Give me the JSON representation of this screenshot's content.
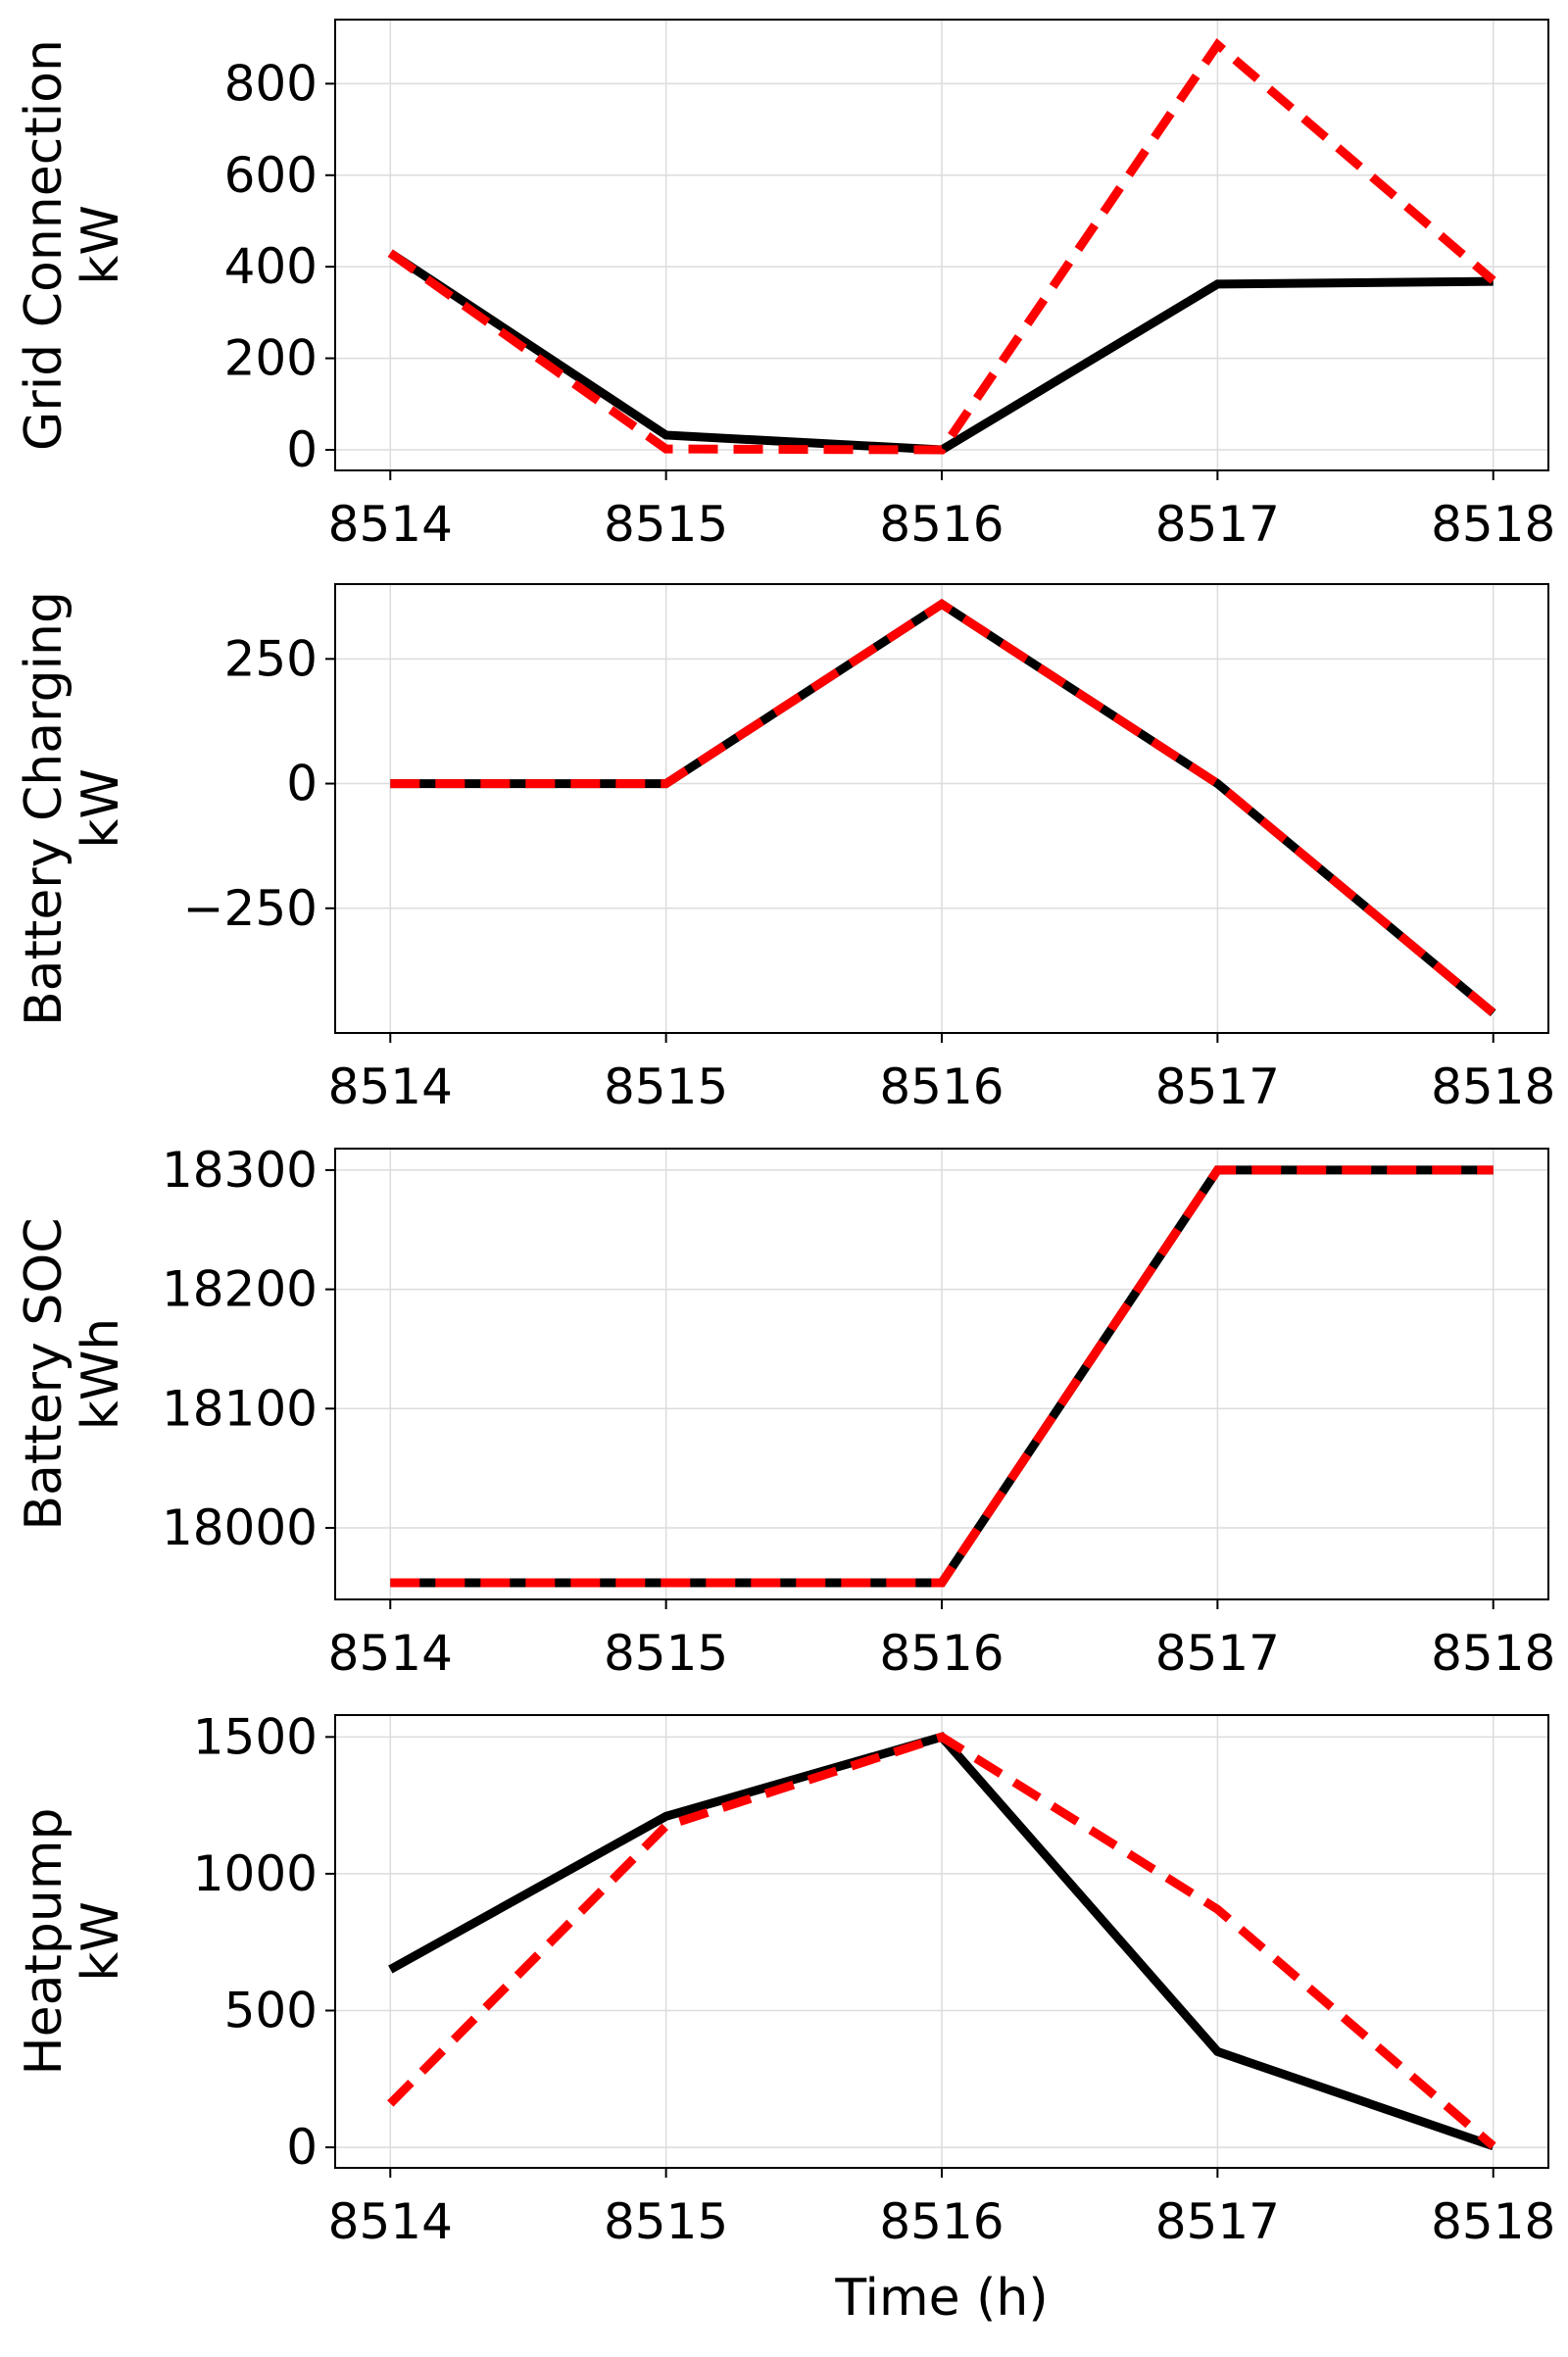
{
  "chart_data": [
    {
      "type": "line",
      "ylabel": [
        "Grid Connection",
        "kW"
      ],
      "xlabel": "",
      "x": [
        8514,
        8515,
        8516,
        8517,
        8518
      ],
      "xlim": [
        8513.8,
        8518.2
      ],
      "ylim": [
        -45,
        940
      ],
      "yticks": [
        0,
        200,
        400,
        600,
        800
      ],
      "ytick_labels": [
        "0",
        "200",
        "400",
        "600",
        "800"
      ],
      "xtick_labels": [
        "8514",
        "8515",
        "8516",
        "8517",
        "8518"
      ],
      "grid": true,
      "series": [
        {
          "style": "solid",
          "color": "#000000",
          "values": [
            430,
            32,
            0,
            362,
            368
          ]
        },
        {
          "style": "dashed",
          "color": "#ff0000",
          "values": [
            430,
            2,
            0,
            885,
            370
          ]
        }
      ]
    },
    {
      "type": "line",
      "ylabel": [
        "Battery Charging",
        "kW"
      ],
      "xlabel": "",
      "x": [
        8514,
        8515,
        8516,
        8517,
        8518
      ],
      "xlim": [
        8513.8,
        8518.2
      ],
      "ylim": [
        -500,
        400
      ],
      "yticks": [
        -250,
        0,
        250
      ],
      "ytick_labels": [
        "−250",
        "0",
        "250"
      ],
      "xtick_labels": [
        "8514",
        "8515",
        "8516",
        "8517",
        "8518"
      ],
      "grid": true,
      "series": [
        {
          "style": "solid",
          "color": "#000000",
          "values": [
            0,
            0,
            360,
            0,
            -460
          ]
        },
        {
          "style": "dashed",
          "color": "#ff0000",
          "values": [
            0,
            0,
            360,
            0,
            -460
          ]
        }
      ]
    },
    {
      "type": "line",
      "ylabel": [
        "Battery SOC",
        "kWh"
      ],
      "xlabel": "",
      "x": [
        8514,
        8515,
        8516,
        8517,
        8518
      ],
      "xlim": [
        8513.8,
        8518.2
      ],
      "ylim": [
        17940,
        18318
      ],
      "yticks": [
        18000,
        18100,
        18200,
        18300
      ],
      "ytick_labels": [
        "18000",
        "18100",
        "18200",
        "18300"
      ],
      "xtick_labels": [
        "8514",
        "8515",
        "8516",
        "8517",
        "8518"
      ],
      "grid": true,
      "series": [
        {
          "style": "solid",
          "color": "#000000",
          "values": [
            17954,
            17954,
            17954,
            18300,
            18300
          ]
        },
        {
          "style": "dashed",
          "color": "#ff0000",
          "values": [
            17954,
            17954,
            17954,
            18300,
            18300
          ]
        }
      ]
    },
    {
      "type": "line",
      "ylabel": [
        "Heatpump",
        "kW"
      ],
      "xlabel": "Time (h)",
      "x": [
        8514,
        8515,
        8516,
        8517,
        8518
      ],
      "xlim": [
        8513.8,
        8518.2
      ],
      "ylim": [
        -75,
        1580
      ],
      "yticks": [
        0,
        500,
        1000,
        1500
      ],
      "ytick_labels": [
        "0",
        "500",
        "1000",
        "1500"
      ],
      "xtick_labels": [
        "8514",
        "8515",
        "8516",
        "8517",
        "8518"
      ],
      "grid": true,
      "series": [
        {
          "style": "solid",
          "color": "#000000",
          "values": [
            650,
            1210,
            1500,
            350,
            5
          ]
        },
        {
          "style": "dashed",
          "color": "#ff0000",
          "values": [
            160,
            1175,
            1500,
            870,
            5
          ]
        }
      ]
    }
  ]
}
